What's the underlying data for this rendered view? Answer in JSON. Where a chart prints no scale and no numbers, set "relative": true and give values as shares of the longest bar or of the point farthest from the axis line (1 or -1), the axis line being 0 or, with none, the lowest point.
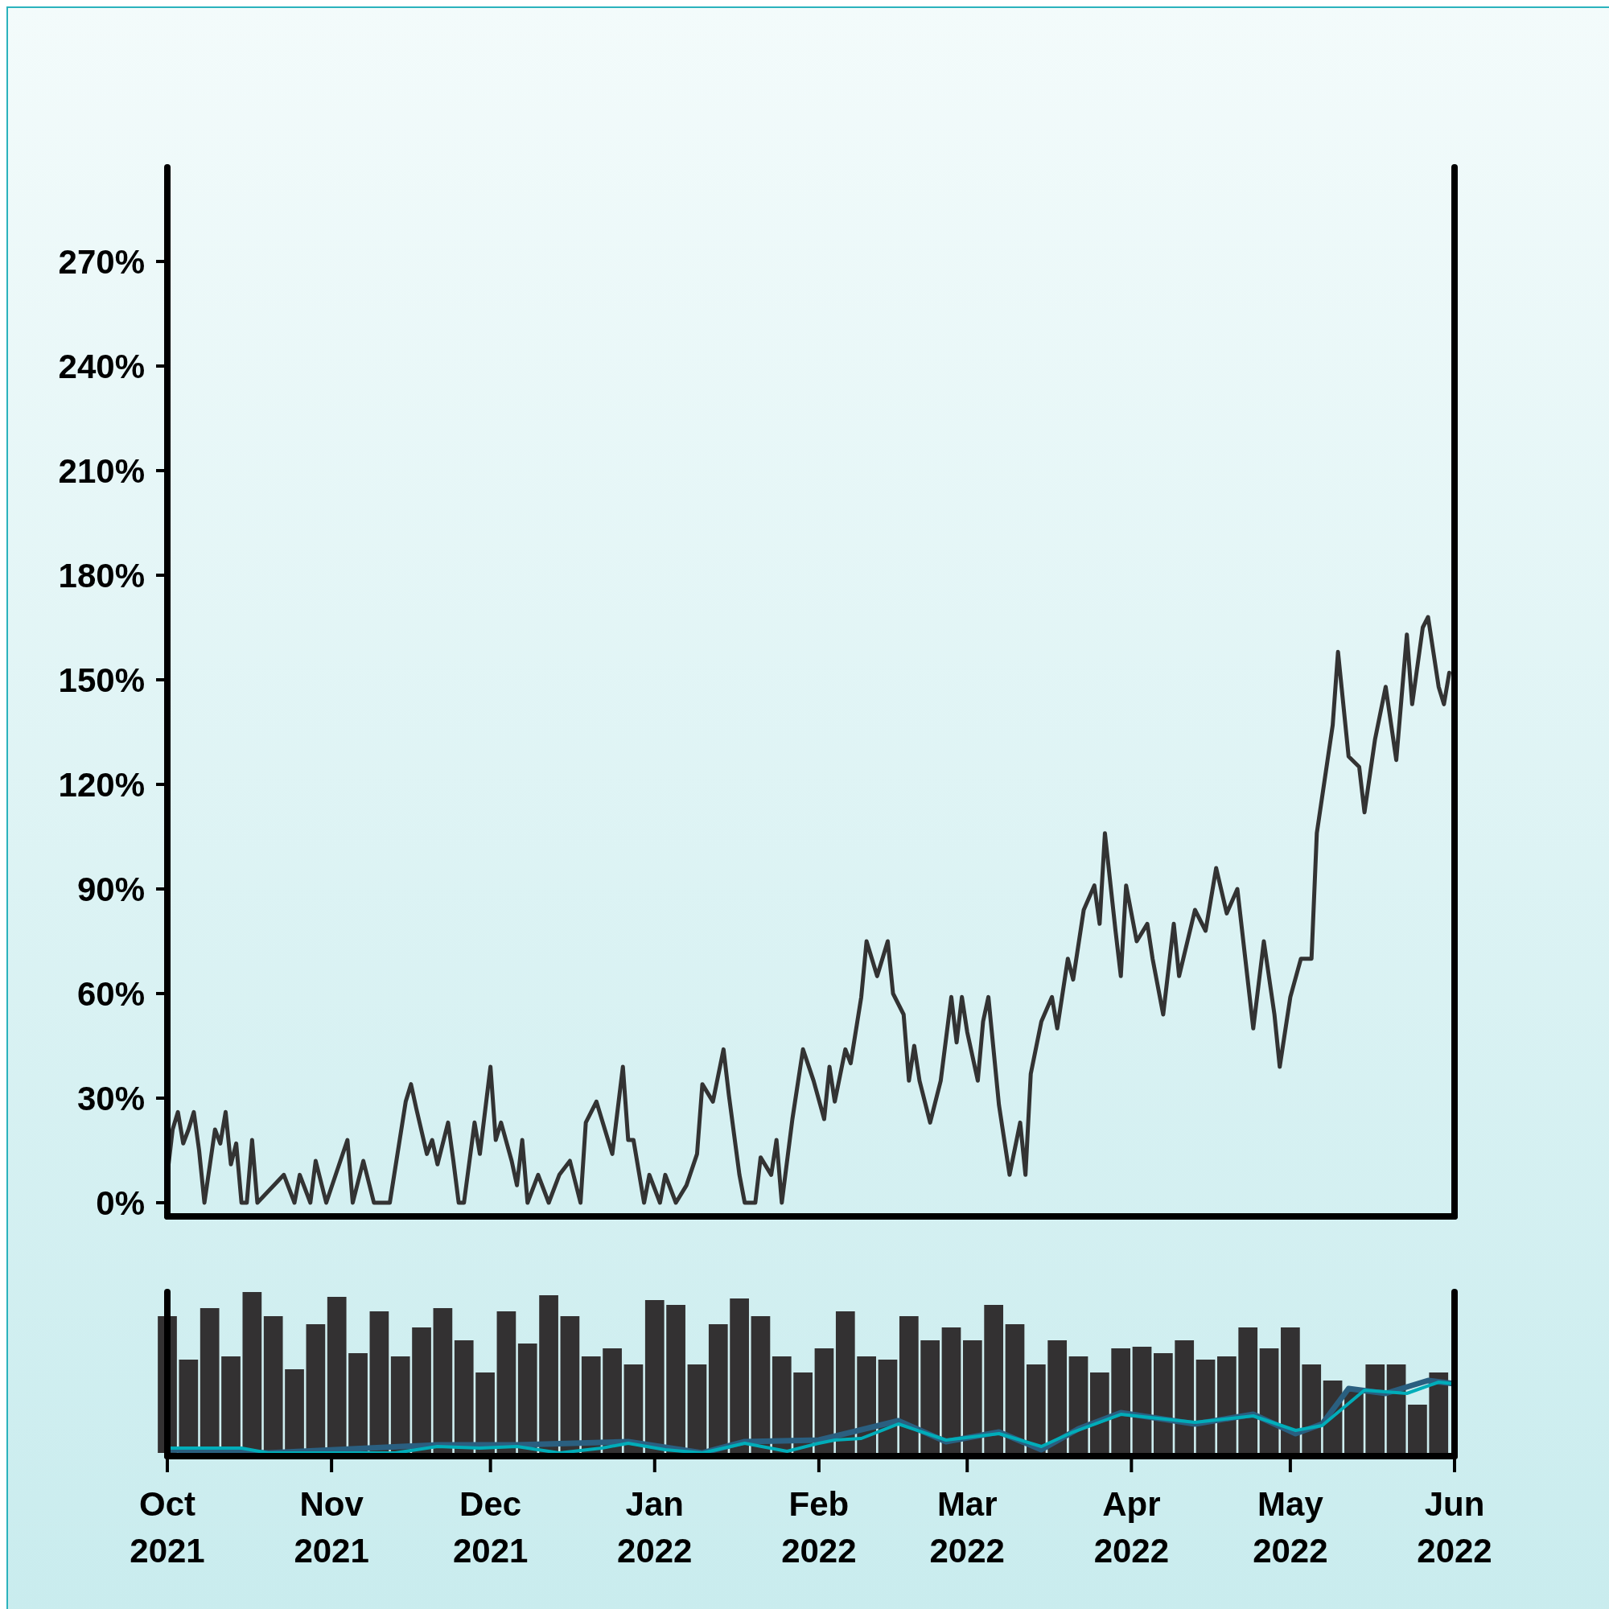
{
  "chart_data": [
    {
      "type": "line",
      "color": "#333333",
      "x": [
        "2021-10-01",
        "2021-10-02",
        "2021-10-03",
        "2021-10-04",
        "2021-10-05",
        "2021-10-06",
        "2021-10-07",
        "2021-10-08",
        "2021-10-10",
        "2021-10-11",
        "2021-10-12",
        "2021-10-13",
        "2021-10-14",
        "2021-10-15",
        "2021-10-16",
        "2021-10-17",
        "2021-10-18",
        "2021-10-23",
        "2021-10-25",
        "2021-10-26",
        "2021-10-28",
        "2021-10-29",
        "2021-10-31",
        "2021-11-04",
        "2021-11-05",
        "2021-11-07",
        "2021-11-09",
        "2021-11-12",
        "2021-11-15",
        "2021-11-16",
        "2021-11-17",
        "2021-11-19",
        "2021-11-20",
        "2021-11-21",
        "2021-11-23",
        "2021-11-24",
        "2021-11-25",
        "2021-11-26",
        "2021-11-28",
        "2021-11-29",
        "2021-12-01",
        "2021-12-02",
        "2021-12-03",
        "2021-12-05",
        "2021-12-06",
        "2021-12-07",
        "2021-12-08",
        "2021-12-10",
        "2021-12-12",
        "2021-12-14",
        "2021-12-16",
        "2021-12-18",
        "2021-12-19",
        "2021-12-21",
        "2021-12-22",
        "2021-12-24",
        "2021-12-26",
        "2021-12-27",
        "2021-12-28",
        "2021-12-30",
        "2021-12-31",
        "2022-01-02",
        "2022-01-03",
        "2022-01-05",
        "2022-01-07",
        "2022-01-09",
        "2022-01-10",
        "2022-01-12",
        "2022-01-14",
        "2022-01-15",
        "2022-01-17",
        "2022-01-18",
        "2022-01-20",
        "2022-01-21",
        "2022-01-23",
        "2022-01-24",
        "2022-01-25",
        "2022-01-27",
        "2022-01-29",
        "2022-01-31",
        "2022-02-02",
        "2022-02-03",
        "2022-02-04",
        "2022-02-06",
        "2022-02-07",
        "2022-02-09",
        "2022-02-10",
        "2022-02-12",
        "2022-02-14",
        "2022-02-15",
        "2022-02-17",
        "2022-02-18",
        "2022-02-19",
        "2022-02-20",
        "2022-02-22",
        "2022-02-24",
        "2022-02-26",
        "2022-02-27",
        "2022-02-28",
        "2022-03-01",
        "2022-03-03",
        "2022-03-04",
        "2022-03-05",
        "2022-03-07",
        "2022-03-09",
        "2022-03-11",
        "2022-03-12",
        "2022-03-13",
        "2022-03-15",
        "2022-03-17",
        "2022-03-18",
        "2022-03-20",
        "2022-03-21",
        "2022-03-23",
        "2022-03-25",
        "2022-03-26",
        "2022-03-27",
        "2022-03-29",
        "2022-03-30",
        "2022-03-31",
        "2022-04-02",
        "2022-04-04",
        "2022-04-05",
        "2022-04-07",
        "2022-04-09",
        "2022-04-10",
        "2022-04-13",
        "2022-04-15",
        "2022-04-17",
        "2022-04-19",
        "2022-04-21",
        "2022-04-24",
        "2022-04-26",
        "2022-04-28",
        "2022-04-29",
        "2022-05-01",
        "2022-05-03",
        "2022-05-05",
        "2022-05-06",
        "2022-05-09",
        "2022-05-10",
        "2022-05-12",
        "2022-05-14",
        "2022-05-15",
        "2022-05-17",
        "2022-05-19",
        "2022-05-21",
        "2022-05-23",
        "2022-05-24",
        "2022-05-26",
        "2022-05-27",
        "2022-05-29",
        "2022-05-30",
        "2022-05-31"
      ],
      "values": [
        8,
        21,
        26,
        17,
        21,
        26,
        15,
        0,
        21,
        17,
        26,
        11,
        17,
        0,
        0,
        18,
        0,
        8,
        0,
        8,
        0,
        12,
        0,
        18,
        0,
        12,
        0,
        0,
        29,
        34,
        27,
        14,
        18,
        11,
        23,
        12,
        0,
        0,
        23,
        14,
        39,
        18,
        23,
        12,
        5,
        18,
        0,
        8,
        0,
        8,
        12,
        0,
        23,
        29,
        24,
        14,
        39,
        18,
        18,
        0,
        8,
        0,
        8,
        0,
        5,
        14,
        34,
        29,
        44,
        31,
        8,
        0,
        0,
        13,
        8,
        18,
        0,
        24,
        44,
        35,
        24,
        39,
        29,
        44,
        40,
        59,
        75,
        65,
        75,
        60,
        54,
        35,
        45,
        35,
        23,
        35,
        59,
        46,
        59,
        49,
        35,
        52,
        59,
        28,
        8,
        23,
        8,
        37,
        52,
        59,
        50,
        70,
        64,
        84,
        91,
        80,
        106,
        78,
        65,
        91,
        75,
        80,
        70,
        54,
        80,
        65,
        84,
        78,
        96,
        83,
        90,
        50,
        75,
        54,
        39,
        59,
        70,
        70,
        106,
        137,
        158,
        128,
        125,
        112,
        133,
        148,
        127,
        163,
        143,
        165,
        168,
        148,
        143,
        152
      ],
      "xlim": [
        "2021-10-01",
        "2022-06-01"
      ],
      "ylim": [
        -3,
        297
      ],
      "yticks": [
        {
          "value": 0,
          "label": "0%"
        },
        {
          "value": 30,
          "label": "30%"
        },
        {
          "value": 60,
          "label": "60%"
        },
        {
          "value": 90,
          "label": "90%"
        },
        {
          "value": 120,
          "label": "120%"
        },
        {
          "value": 150,
          "label": "150%"
        },
        {
          "value": 180,
          "label": "180%"
        },
        {
          "value": 210,
          "label": "210%"
        },
        {
          "value": 240,
          "label": "240%"
        },
        {
          "value": 270,
          "label": "270%"
        }
      ],
      "tick_labels": "y"
    },
    {
      "type": "bar",
      "relative": true,
      "xlim": [
        "2021-10-01",
        "2022-06-01"
      ],
      "x": [
        "2021-10-01",
        "2021-10-05",
        "2021-10-09",
        "2021-10-13",
        "2021-10-17",
        "2021-10-21",
        "2021-10-25",
        "2021-10-29",
        "2021-11-02",
        "2021-11-06",
        "2021-11-10",
        "2021-11-14",
        "2021-11-18",
        "2021-11-22",
        "2021-11-26",
        "2021-11-30",
        "2021-12-04",
        "2021-12-08",
        "2021-12-12",
        "2021-12-16",
        "2021-12-20",
        "2021-12-24",
        "2021-12-28",
        "2022-01-01",
        "2022-01-05",
        "2022-01-09",
        "2022-01-13",
        "2022-01-17",
        "2022-01-21",
        "2022-01-25",
        "2022-01-29",
        "2022-02-02",
        "2022-02-06",
        "2022-02-10",
        "2022-02-14",
        "2022-02-18",
        "2022-02-22",
        "2022-02-26",
        "2022-03-02",
        "2022-03-06",
        "2022-03-10",
        "2022-03-14",
        "2022-03-18",
        "2022-03-22",
        "2022-03-26",
        "2022-03-30",
        "2022-04-03",
        "2022-04-07",
        "2022-04-11",
        "2022-04-15",
        "2022-04-19",
        "2022-04-23",
        "2022-04-27",
        "2022-05-01",
        "2022-05-05",
        "2022-05-09",
        "2022-05-13",
        "2022-05-17",
        "2022-05-21",
        "2022-05-25",
        "2022-05-29"
      ],
      "series": [
        {
          "color": "#333132",
          "values": [
            0.85,
            0.58,
            0.9,
            0.6,
            1,
            0.85,
            0.52,
            0.8,
            0.97,
            0.62,
            0.88,
            0.6,
            0.78,
            0.9,
            0.7,
            0.5,
            0.88,
            0.68,
            0.98,
            0.85,
            0.6,
            0.65,
            0.55,
            0.95,
            0.92,
            0.55,
            0.8,
            0.96,
            0.85,
            0.6,
            0.5,
            0.65,
            0.88,
            0.6,
            0.58,
            0.85,
            0.7,
            0.78,
            0.7,
            0.92,
            0.8,
            0.55,
            0.7,
            0.6,
            0.5,
            0.65,
            0.66,
            0.62,
            0.7,
            0.58,
            0.6,
            0.78,
            0.65,
            0.78,
            0.55,
            0.45,
            0.38,
            0.55,
            0.55,
            0.3,
            0.5
          ]
        },
        {
          "type": "line",
          "color": "#2a5f80",
          "x": [
            "2021-10-01",
            "2021-10-20",
            "2021-11-21",
            "2021-12-06",
            "2021-12-27",
            "2022-01-10",
            "2022-01-18",
            "2022-02-01",
            "2022-02-16",
            "2022-02-25",
            "2022-03-07",
            "2022-03-15",
            "2022-03-22",
            "2022-03-30",
            "2022-04-13",
            "2022-04-24",
            "2022-05-02",
            "2022-05-07",
            "2022-05-12",
            "2022-05-19",
            "2022-05-27",
            "2022-06-01"
          ],
          "values": [
            0.02,
            0,
            0.05,
            0.05,
            0.07,
            0,
            0.07,
            0.08,
            0.2,
            0.07,
            0.13,
            0.02,
            0.15,
            0.25,
            0.18,
            0.24,
            0.12,
            0.18,
            0.4,
            0.37,
            0.45,
            0.43
          ]
        },
        {
          "type": "line",
          "color": "#00adb9",
          "x": [
            "2021-10-01",
            "2021-10-09",
            "2021-10-15",
            "2021-10-20",
            "2021-11-13",
            "2021-11-21",
            "2021-11-29",
            "2021-12-06",
            "2021-12-14",
            "2021-12-22",
            "2021-12-27",
            "2022-01-03",
            "2022-01-10",
            "2022-01-18",
            "2022-01-26",
            "2022-02-01",
            "2022-02-04",
            "2022-02-09",
            "2022-02-16",
            "2022-02-25",
            "2022-03-07",
            "2022-03-15",
            "2022-03-21",
            "2022-03-30",
            "2022-04-13",
            "2022-04-24",
            "2022-05-02",
            "2022-05-07",
            "2022-05-15",
            "2022-05-23",
            "2022-05-29",
            "2022-06-01"
          ],
          "values": [
            0.03,
            0.03,
            0.03,
            0,
            0,
            0.04,
            0.03,
            0.04,
            0,
            0.03,
            0.06,
            0.02,
            0,
            0.06,
            0.01,
            0.06,
            0.08,
            0.09,
            0.18,
            0.08,
            0.12,
            0.04,
            0.13,
            0.24,
            0.19,
            0.23,
            0.14,
            0.17,
            0.39,
            0.37,
            0.44,
            0.43
          ]
        }
      ],
      "xticks": [
        {
          "value": "2021-10-01",
          "label": "Oct 2021"
        },
        {
          "value": "2021-11-01",
          "label": "Nov 2021"
        },
        {
          "value": "2021-12-01",
          "label": "Dec 2021"
        },
        {
          "value": "2022-01-01",
          "label": "Jan 2022"
        },
        {
          "value": "2022-02-01",
          "label": "Feb 2022"
        },
        {
          "value": "2022-03-01",
          "label": "Mar 2022"
        },
        {
          "value": "2022-04-01",
          "label": "Apr 2022"
        },
        {
          "value": "2022-05-01",
          "label": "May 2022"
        },
        {
          "value": "2022-06-01",
          "label": "Jun 2022"
        }
      ],
      "tick_labels": "x"
    }
  ]
}
